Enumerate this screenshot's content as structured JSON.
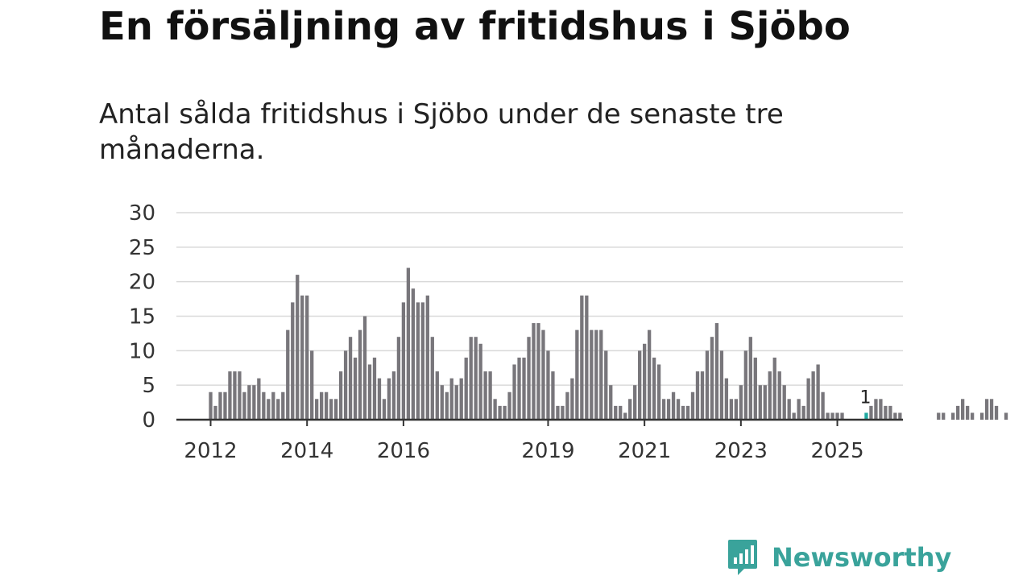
{
  "header": {
    "title": "En försäljning av fritidshus i Sjöbo",
    "subtitle": "Antal sålda fritidshus i Sjöbo under de senaste tre månaderna."
  },
  "brand": {
    "name": "Newsworthy",
    "icon": "newsworthy-logo-icon",
    "color": "#3aa39b"
  },
  "colors": {
    "bar": "#78767b",
    "highlight": "#1fa8a0",
    "axis": "#333333",
    "grid": "#d9d9d9"
  },
  "chart_data": {
    "type": "bar",
    "title": "",
    "xlabel": "",
    "ylabel": "",
    "ylim": [
      0,
      30
    ],
    "y_ticks": [
      "0",
      "5",
      "10",
      "15",
      "20",
      "25",
      "30"
    ],
    "x_ticks": [
      {
        "label": "2012",
        "index": 0
      },
      {
        "label": "2014",
        "index": 20
      },
      {
        "label": "2016",
        "index": 40
      },
      {
        "label": "2019",
        "index": 70
      },
      {
        "label": "2021",
        "index": 90
      },
      {
        "label": "2023",
        "index": 110
      },
      {
        "label": "2025",
        "index": 130
      }
    ],
    "grid": true,
    "legend": "none",
    "values": [
      4,
      2,
      4,
      4,
      7,
      7,
      7,
      4,
      5,
      5,
      6,
      4,
      3,
      4,
      3,
      4,
      13,
      17,
      21,
      18,
      18,
      10,
      3,
      4,
      4,
      3,
      3,
      7,
      10,
      12,
      9,
      13,
      15,
      8,
      9,
      6,
      3,
      6,
      7,
      12,
      17,
      22,
      19,
      17,
      17,
      18,
      12,
      7,
      5,
      4,
      6,
      5,
      6,
      9,
      12,
      12,
      11,
      7,
      7,
      3,
      2,
      2,
      4,
      8,
      9,
      9,
      12,
      14,
      14,
      13,
      10,
      7,
      2,
      2,
      4,
      6,
      13,
      18,
      18,
      13,
      13,
      13,
      10,
      5,
      2,
      2,
      1,
      3,
      5,
      10,
      11,
      13,
      9,
      8,
      3,
      3,
      4,
      3,
      2,
      2,
      4,
      7,
      7,
      10,
      12,
      14,
      10,
      6,
      3,
      3,
      5,
      10,
      12,
      9,
      5,
      5,
      7,
      9,
      7,
      5,
      3,
      1,
      3,
      2,
      6,
      7,
      8,
      4,
      1,
      1,
      1,
      1,
      0,
      0,
      0,
      0,
      1,
      2,
      3,
      3,
      2,
      2,
      1,
      1,
      0,
      0,
      0,
      0,
      0,
      0,
      0,
      1,
      1,
      0,
      1,
      2,
      3,
      2,
      1,
      0,
      1,
      3,
      3,
      2,
      0,
      1
    ],
    "highlight_index": 136,
    "annotations": [
      {
        "index": 136,
        "text": "1"
      }
    ]
  }
}
